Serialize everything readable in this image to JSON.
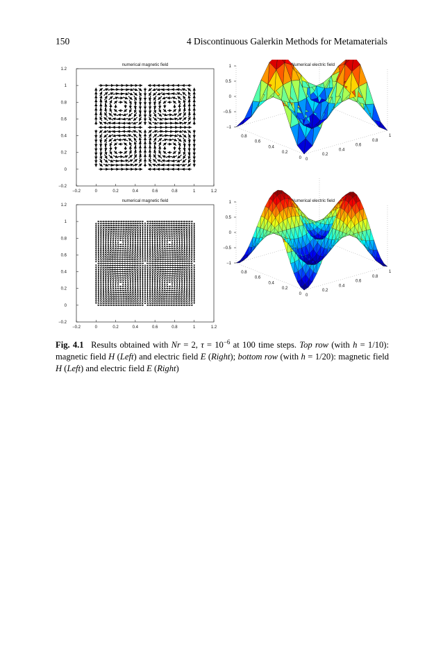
{
  "header": {
    "page_number": "150",
    "running_title": "4   Discontinuous Galerkin Methods for Metamaterials"
  },
  "figure": {
    "caption": {
      "label": "Fig. 4.1",
      "parts": [
        {
          "t": "Results obtained with ",
          "s": "n"
        },
        {
          "t": "Nr",
          "s": "i"
        },
        {
          "t": " = 2, ",
          "s": "n"
        },
        {
          "t": "τ",
          "s": "i"
        },
        {
          "t": " = 10",
          "s": "n"
        },
        {
          "t": "−6",
          "s": "sup"
        },
        {
          "t": " at 100 time steps. ",
          "s": "n"
        },
        {
          "t": "Top row",
          "s": "i"
        },
        {
          "t": " (with ",
          "s": "n"
        },
        {
          "t": "h",
          "s": "i"
        },
        {
          "t": " = 1/10): magnetic field ",
          "s": "n"
        },
        {
          "t": "H",
          "s": "i"
        },
        {
          "t": " (",
          "s": "n"
        },
        {
          "t": "Left",
          "s": "i"
        },
        {
          "t": ") and electric field ",
          "s": "n"
        },
        {
          "t": "E",
          "s": "i"
        },
        {
          "t": " (",
          "s": "n"
        },
        {
          "t": "Right",
          "s": "i"
        },
        {
          "t": "); ",
          "s": "n"
        },
        {
          "t": "bottom row",
          "s": "i"
        },
        {
          "t": " (with ",
          "s": "n"
        },
        {
          "t": "h",
          "s": "i"
        },
        {
          "t": " = 1/20): magnetic field ",
          "s": "n"
        },
        {
          "t": "H",
          "s": "i"
        },
        {
          "t": " (",
          "s": "n"
        },
        {
          "t": "Left",
          "s": "i"
        },
        {
          "t": ") and electric field ",
          "s": "n"
        },
        {
          "t": "E",
          "s": "i"
        },
        {
          "t": " (",
          "s": "n"
        },
        {
          "t": "Right",
          "s": "i"
        },
        {
          "t": ")",
          "s": "n"
        }
      ]
    },
    "panels": {
      "quiver": [
        {
          "title": "numerical magnetic field",
          "cells": 10,
          "xlim": [
            -0.2,
            1.2
          ],
          "ylim": [
            -0.2,
            1.2
          ],
          "xticks": [
            "−0.2",
            "0",
            "0.2",
            "0.4",
            "0.6",
            "0.8",
            "1",
            "1.2"
          ],
          "yticks": [
            "−0.2",
            "0",
            "0.2",
            "0.4",
            "0.6",
            "0.8",
            "1",
            "1.2"
          ]
        },
        {
          "title": "numerical magnetic field",
          "cells": 20,
          "xlim": [
            -0.2,
            1.2
          ],
          "ylim": [
            -0.2,
            1.2
          ],
          "xticks": [
            "−0.2",
            "0",
            "0.2",
            "0.4",
            "0.6",
            "0.8",
            "1",
            "1.2"
          ],
          "yticks": [
            "−0.2",
            "0",
            "0.2",
            "0.4",
            "0.6",
            "0.8",
            "1",
            "1.2"
          ]
        }
      ],
      "surface": [
        {
          "title": "Numerical electric field",
          "cells": 10,
          "zlim": [
            -1,
            1
          ],
          "zticks": [
            "1",
            "0.5",
            "0",
            "−0.5",
            "−1"
          ],
          "xticks": [
            "0",
            "0.2",
            "0.4",
            "0.6",
            "0.8",
            "1"
          ],
          "yticks": [
            "0",
            "0.2",
            "0.4",
            "0.6",
            "0.8"
          ]
        },
        {
          "title": "Numerical electric field",
          "cells": 20,
          "zlim": [
            -1,
            1
          ],
          "zticks": [
            "1",
            "0.5",
            "0",
            "−0.5",
            "−1"
          ],
          "xticks": [
            "0",
            "0.2",
            "0.4",
            "0.6",
            "0.8",
            "1"
          ],
          "yticks": [
            "0",
            "0.2",
            "0.4",
            "0.6",
            "0.8"
          ]
        }
      ]
    }
  }
}
